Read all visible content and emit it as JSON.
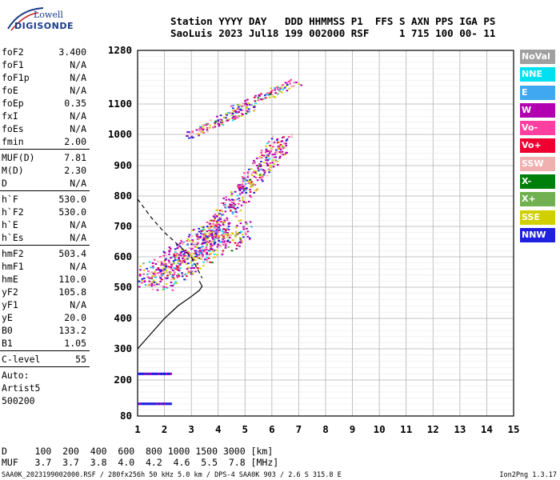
{
  "logo": {
    "line1": "Lowell",
    "line2": "DIGISONDE"
  },
  "header": {
    "line1": "Station YYYY DAY   DDD HHMMSS P1  FFS S AXN PPS IGA PS",
    "line2": "SaoLuis 2023 Jul18 199 002000 RSF     1 715 100 00- 11"
  },
  "params": {
    "group1": [
      {
        "k": "foF2",
        "v": "3.400"
      },
      {
        "k": "foF1",
        "v": "N/A"
      },
      {
        "k": "foF1p",
        "v": "N/A"
      },
      {
        "k": "foE",
        "v": "N/A"
      },
      {
        "k": "foEp",
        "v": "0.35"
      },
      {
        "k": "fxI",
        "v": "N/A"
      },
      {
        "k": "foEs",
        "v": "N/A"
      },
      {
        "k": "fmin",
        "v": "2.00"
      }
    ],
    "group2": [
      {
        "k": "MUF(D)",
        "v": "7.81"
      },
      {
        "k": "M(D)",
        "v": "2.30"
      },
      {
        "k": "D",
        "v": "N/A"
      }
    ],
    "group3": [
      {
        "k": "h`F",
        "v": "530.0"
      },
      {
        "k": "h`F2",
        "v": "530.0"
      },
      {
        "k": "h`E",
        "v": "N/A"
      },
      {
        "k": "h`Es",
        "v": "N/A"
      }
    ],
    "group4": [
      {
        "k": "hmF2",
        "v": "503.4"
      },
      {
        "k": "hmF1",
        "v": "N/A"
      },
      {
        "k": "hmE",
        "v": "110.0"
      },
      {
        "k": "yF2",
        "v": "105.8"
      },
      {
        "k": "yF1",
        "v": "N/A"
      },
      {
        "k": "yE",
        "v": "20.0"
      },
      {
        "k": "B0",
        "v": "133.2"
      },
      {
        "k": "B1",
        "v": "1.05"
      }
    ],
    "group5": [
      {
        "k": "C-level",
        "v": "55"
      }
    ],
    "auto": [
      "Auto:",
      "Artist5",
      "500200"
    ]
  },
  "legend": [
    {
      "label": "NoVal",
      "color": "#a0a0a0"
    },
    {
      "label": "NNE",
      "color": "#00e0f0"
    },
    {
      "label": "E",
      "color": "#40a8f0"
    },
    {
      "label": "W",
      "color": "#b000b0"
    },
    {
      "label": "Vo-",
      "color": "#ff40a0"
    },
    {
      "label": "Vo+",
      "color": "#f00030"
    },
    {
      "label": "SSW",
      "color": "#f0b0b0"
    },
    {
      "label": "X-",
      "color": "#00800a"
    },
    {
      "label": "X+",
      "color": "#70b050"
    },
    {
      "label": "SSE",
      "color": "#d0d000"
    },
    {
      "label": "NNW",
      "color": "#2020e0"
    }
  ],
  "muf": {
    "line1": "D     100  200  400  600  800 1000 1500 3000 [km]",
    "line2": "MUF   3.7  3.7  3.8  4.0  4.2  4.6  5.5  7.8 [MHz]"
  },
  "footer": "SAA0K_2023199002000.RSF / 280fx256h 50 kHz 5.0 km / DPS-4 SAA0K 903 / 2.6 S 315.8 E",
  "version": "Ion2Png 1.3.17",
  "chart_data": {
    "type": "scatter",
    "x_ticks": [
      1,
      2,
      3,
      4,
      5,
      6,
      7,
      8,
      9,
      10,
      11,
      12,
      13,
      14,
      15
    ],
    "y_ticks": [
      80,
      200,
      300,
      400,
      500,
      600,
      700,
      800,
      900,
      1000,
      1100,
      1280
    ],
    "xlim": [
      1,
      15
    ],
    "ylim": [
      80,
      1280
    ],
    "grid": true,
    "o_trace_clusters": [
      {
        "f0": 1.3,
        "f1": 4.5,
        "h0": 510,
        "h1": 700,
        "density": 600
      },
      {
        "f0": 3.4,
        "f1": 6.4,
        "h0": 650,
        "h1": 990,
        "density": 380
      },
      {
        "f0": 2.8,
        "f1": 5.4,
        "h0": 1000,
        "h1": 1100,
        "density": 120
      },
      {
        "f0": 4.4,
        "f1": 7.0,
        "h0": 1080,
        "h1": 1180,
        "density": 90
      }
    ],
    "e_layer_echoes": [
      {
        "f0": 1.0,
        "f1": 2.2,
        "h": 221,
        "color": "#2020e0"
      },
      {
        "f0": 1.0,
        "f1": 2.2,
        "h": 122,
        "color": "#2020e0"
      }
    ],
    "profile_solid": [
      [
        1.0,
        300
      ],
      [
        1.5,
        350
      ],
      [
        2.0,
        400
      ],
      [
        2.5,
        440
      ],
      [
        3.0,
        470
      ],
      [
        3.3,
        490
      ],
      [
        3.4,
        503
      ],
      [
        3.3,
        520
      ]
    ],
    "profile_dashed": [
      [
        1.0,
        790
      ],
      [
        1.5,
        730
      ],
      [
        2.0,
        680
      ],
      [
        2.5,
        640
      ],
      [
        3.0,
        600
      ],
      [
        3.4,
        530
      ]
    ]
  }
}
